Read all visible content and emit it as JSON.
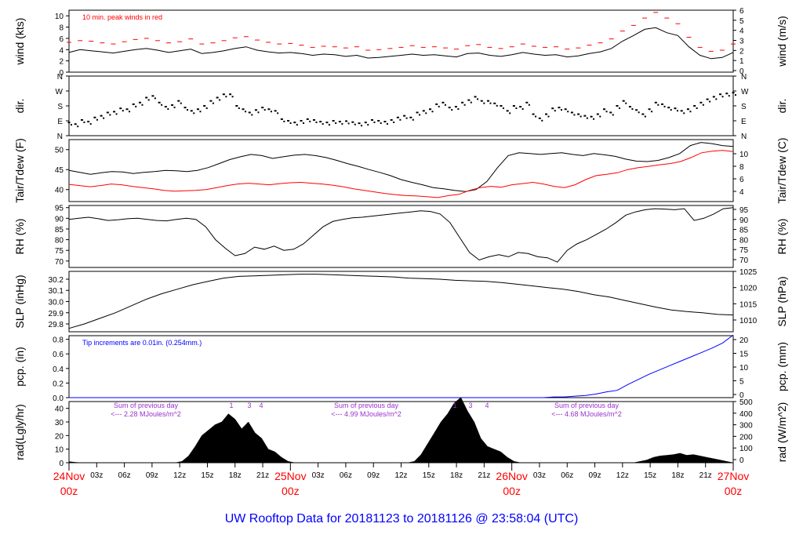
{
  "footer_title": "UW Rooftop Data for 20181123  to  20181126 @ 23:58:04  (UTC)",
  "colors": {
    "black": "#000000",
    "red": "#ff0000",
    "blue": "#0000ff",
    "purple": "#9932cc",
    "title": "#0000ff"
  },
  "time_axis": {
    "minor_labels": [
      "03z",
      "06z",
      "09z",
      "12z",
      "15z",
      "18z",
      "21z",
      "03z",
      "06z",
      "09z",
      "12z",
      "15z",
      "18z",
      "21z",
      "03z",
      "06z",
      "09z",
      "12z",
      "15z",
      "18z",
      "21z"
    ],
    "major_labels": [
      {
        "day": "24Nov",
        "hour": "00z"
      },
      {
        "day": "25Nov",
        "hour": "00z"
      },
      {
        "day": "26Nov",
        "hour": "00z"
      },
      {
        "day": "27Nov",
        "hour": "00z"
      }
    ]
  },
  "chart_data": [
    {
      "id": "wind",
      "type": "line",
      "ylabel": "wind (kts)",
      "ylabel_right": "wind (m/s)",
      "ylim": [
        0,
        11
      ],
      "yticks": [
        0,
        2,
        4,
        6,
        8,
        10
      ],
      "yticks_right": [
        0,
        1,
        2,
        3,
        4,
        5,
        6
      ],
      "annotation": "10 min. peak winds in red",
      "series": [
        {
          "values": [
            3.5,
            4.0,
            3.8,
            3.6,
            3.4,
            3.7,
            4.0,
            4.2,
            3.9,
            3.5,
            3.8,
            4.1,
            3.3,
            3.5,
            3.8,
            4.2,
            4.5,
            3.9,
            3.6,
            3.4,
            3.5,
            3.3,
            3.0,
            3.2,
            3.1,
            2.8,
            3.0,
            2.5,
            2.6,
            2.8,
            3.0,
            3.2,
            3.0,
            3.1,
            2.9,
            2.7,
            3.3,
            3.4,
            3.0,
            2.8,
            3.1,
            3.5,
            3.2,
            3.0,
            3.1,
            2.7,
            2.9,
            3.3,
            3.6,
            4.2,
            5.5,
            6.5,
            7.6,
            7.9,
            7.0,
            6.5,
            4.5,
            3.0,
            2.4,
            2.6,
            3.5
          ]
        },
        {
          "values": [
            5.3,
            5.6,
            5.5,
            5.2,
            5.0,
            5.4,
            5.8,
            6.0,
            5.6,
            5.2,
            5.4,
            5.9,
            5.0,
            5.2,
            5.6,
            6.1,
            6.3,
            5.7,
            5.3,
            5.0,
            5.1,
            4.8,
            4.4,
            4.6,
            4.5,
            4.3,
            4.5,
            3.9,
            4.0,
            4.2,
            4.4,
            4.7,
            4.4,
            4.5,
            4.3,
            4.1,
            4.7,
            4.9,
            4.4,
            4.2,
            4.5,
            5.0,
            4.6,
            4.4,
            4.5,
            4.1,
            4.3,
            4.8,
            5.2,
            5.9,
            7.3,
            8.3,
            9.6,
            10.6,
            9.6,
            8.6,
            6.2,
            4.4,
            3.7,
            3.9,
            5.0
          ]
        }
      ]
    },
    {
      "id": "dir",
      "type": "scatter",
      "ylabel": "dir.",
      "ylim": [
        0,
        360
      ],
      "yticks": [
        "N",
        "E",
        "S",
        "W",
        "N"
      ],
      "values": [
        80,
        70,
        95,
        85,
        110,
        120,
        140,
        145,
        165,
        160,
        190,
        200,
        230,
        240,
        200,
        175,
        185,
        210,
        170,
        150,
        160,
        180,
        210,
        230,
        250,
        250,
        180,
        160,
        140,
        155,
        170,
        160,
        150,
        100,
        90,
        80,
        90,
        100,
        95,
        85,
        80,
        90,
        85,
        88,
        82,
        75,
        80,
        95,
        90,
        85,
        95,
        110,
        120,
        110,
        140,
        150,
        160,
        190,
        200,
        170,
        175,
        200,
        215,
        235,
        210,
        210,
        195,
        180,
        150,
        180,
        175,
        200,
        130,
        105,
        130,
        165,
        170,
        160,
        140,
        130,
        120,
        115,
        130,
        160,
        140,
        180,
        210,
        175,
        155,
        130,
        160,
        200,
        190,
        170,
        165,
        150,
        160,
        180,
        200,
        220,
        235,
        250,
        255,
        260
      ]
    },
    {
      "id": "temp",
      "type": "line",
      "ylabel": "Tair/Tdew (F)",
      "ylabel_right": "Tair/Tdew (C)",
      "ylim": [
        37,
        52.5
      ],
      "yticks": [
        40,
        45,
        50
      ],
      "yticks_right": [
        4,
        6,
        8,
        10
      ],
      "series": [
        {
          "values": [
            44.8,
            44.3,
            43.8,
            44.2,
            44.5,
            44.4,
            44.0,
            44.3,
            44.5,
            44.8,
            44.7,
            44.5,
            44.8,
            45.5,
            46.5,
            47.5,
            48.2,
            48.8,
            48.5,
            47.8,
            48.2,
            48.6,
            48.8,
            48.5,
            48.0,
            47.3,
            46.5,
            45.8,
            45.0,
            44.3,
            43.5,
            42.5,
            41.8,
            41.2,
            40.5,
            40.2,
            39.8,
            39.5,
            40.0,
            42.0,
            45.5,
            48.5,
            49.2,
            49.0,
            48.8,
            49.0,
            49.2,
            48.8,
            48.5,
            49.0,
            48.7,
            48.3,
            47.6,
            47.1,
            47.0,
            47.3,
            48.0,
            49.0,
            51.0,
            51.8,
            51.5,
            51.0,
            50.8
          ]
        },
        {
          "values": [
            41.3,
            41.0,
            40.7,
            41.0,
            41.4,
            41.2,
            40.8,
            40.5,
            40.2,
            39.8,
            39.6,
            39.7,
            39.8,
            40.0,
            40.5,
            41.0,
            41.4,
            41.6,
            41.4,
            41.2,
            41.5,
            41.7,
            41.8,
            41.6,
            41.4,
            41.1,
            40.7,
            40.2,
            39.8,
            39.4,
            39.0,
            38.7,
            38.5,
            38.4,
            38.2,
            38.0,
            38.5,
            38.8,
            39.8,
            40.5,
            40.8,
            40.6,
            41.2,
            41.5,
            41.8,
            41.4,
            40.8,
            40.5,
            41.2,
            42.5,
            43.5,
            43.8,
            44.2,
            45.0,
            45.5,
            45.8,
            46.2,
            46.5,
            47.0,
            48.0,
            49.2,
            49.6,
            49.8,
            49.5
          ]
        }
      ]
    },
    {
      "id": "rh",
      "type": "line",
      "ylabel": "RH (%)",
      "ylabel_right": "RH (%)",
      "ylim": [
        67,
        96
      ],
      "yticks": [
        70,
        75,
        80,
        85,
        90,
        95
      ],
      "yticks_right": [
        70,
        75,
        80,
        85,
        90,
        95
      ],
      "values": [
        89.5,
        90.0,
        90.5,
        89.8,
        89.0,
        89.3,
        89.8,
        90.0,
        89.5,
        89.0,
        88.8,
        89.5,
        90.0,
        89.5,
        86.0,
        80.0,
        76.0,
        72.5,
        73.5,
        76.5,
        75.5,
        77.0,
        75.0,
        75.5,
        78.0,
        82.0,
        86.0,
        88.5,
        89.5,
        90.2,
        90.5,
        91.0,
        91.5,
        92.0,
        92.5,
        93.0,
        93.5,
        93.2,
        92.0,
        88.0,
        81.0,
        74.0,
        70.5,
        72.0,
        73.0,
        72.0,
        74.0,
        73.5,
        72.0,
        71.5,
        69.5,
        75.0,
        78.0,
        80.0,
        82.5,
        85.0,
        88.0,
        91.5,
        93.0,
        94.0,
        94.5,
        94.3,
        94.0,
        94.5,
        89.0,
        90.0,
        92.0,
        94.5,
        95.0
      ]
    },
    {
      "id": "slp",
      "type": "line",
      "ylabel": "SLP (inHg)",
      "ylabel_right": "SLP (hPa)",
      "ylim": [
        29.73,
        30.27
      ],
      "yticks": [
        29.8,
        29.9,
        30.0,
        30.1,
        30.2
      ],
      "yticks_right": [
        1010,
        1015,
        1020,
        1025
      ],
      "values": [
        29.76,
        29.8,
        29.85,
        29.9,
        29.96,
        30.02,
        30.07,
        30.11,
        30.15,
        30.18,
        30.21,
        30.225,
        30.23,
        30.235,
        30.24,
        30.245,
        30.245,
        30.24,
        30.235,
        30.23,
        30.225,
        30.22,
        30.21,
        30.205,
        30.2,
        30.19,
        30.185,
        30.18,
        30.17,
        30.155,
        30.14,
        30.125,
        30.11,
        30.09,
        30.06,
        30.04,
        30.01,
        29.98,
        29.95,
        29.925,
        29.91,
        29.9,
        29.885,
        29.88
      ]
    },
    {
      "id": "pcp",
      "type": "line",
      "ylabel": "pcp. (in)",
      "ylabel_right": "pcp. (mm)",
      "ylim": [
        0,
        0.85
      ],
      "yticks": [
        0.0,
        0.2,
        0.4,
        0.6,
        0.8
      ],
      "yticks_right": [
        0,
        5,
        10,
        15,
        20
      ],
      "annotation": "Tip increments are 0.01in. (0.254mm.)",
      "values": [
        0,
        0,
        0,
        0,
        0,
        0,
        0,
        0,
        0,
        0,
        0,
        0,
        0,
        0,
        0,
        0,
        0,
        0,
        0,
        0,
        0,
        0,
        0,
        0,
        0,
        0,
        0,
        0,
        0,
        0,
        0,
        0,
        0,
        0,
        0,
        0,
        0,
        0,
        0,
        0,
        0,
        0,
        0,
        0,
        0,
        0,
        0.01,
        0.01,
        0.02,
        0.03,
        0.05,
        0.08,
        0.1,
        0.18,
        0.25,
        0.32,
        0.38,
        0.44,
        0.5,
        0.56,
        0.62,
        0.68,
        0.75,
        0.86
      ]
    },
    {
      "id": "rad",
      "type": "area",
      "ylabel": "rad(Lgly/hr)",
      "ylabel_right": "rad (W/m^2)",
      "ylim": [
        0,
        45
      ],
      "yticks": [
        0,
        10,
        20,
        30,
        40
      ],
      "yticks_right": [
        0,
        100,
        200,
        300,
        400,
        500
      ],
      "values": [
        0.8,
        0.3,
        0,
        0,
        0,
        0,
        0,
        0,
        0,
        0,
        0,
        0,
        0,
        0,
        0,
        0,
        0,
        1,
        5,
        12,
        20,
        24,
        28,
        30,
        36,
        32,
        25,
        30,
        22,
        18,
        10,
        8,
        4,
        1,
        0,
        0,
        0,
        0,
        0,
        0,
        0,
        0,
        0,
        0,
        0,
        0,
        0,
        0,
        0,
        0,
        0,
        0,
        1,
        6,
        14,
        22,
        30,
        36,
        44,
        48,
        38,
        30,
        18,
        12,
        10,
        8,
        4,
        1,
        0,
        0,
        0,
        0,
        0,
        0,
        0,
        0,
        0,
        0,
        0,
        0,
        0,
        0,
        0,
        0,
        0,
        0,
        1,
        2,
        4,
        5,
        5.5,
        6,
        7,
        5.5,
        6,
        5,
        4,
        3,
        2,
        1,
        0
      ],
      "daily_notes": [
        {
          "title": "Sum of previous day",
          "value": "<--- 2.28 MJoules/m^2"
        },
        {
          "title": "Sum of previous day",
          "value": "<--- 4.99 MJoules/m^2"
        },
        {
          "title": "Sum of previous day",
          "value": "<--- 4.68 MJoules/m^2"
        }
      ],
      "tip_labels": [
        "1",
        "3",
        "4",
        "1",
        "3",
        "4"
      ]
    }
  ]
}
